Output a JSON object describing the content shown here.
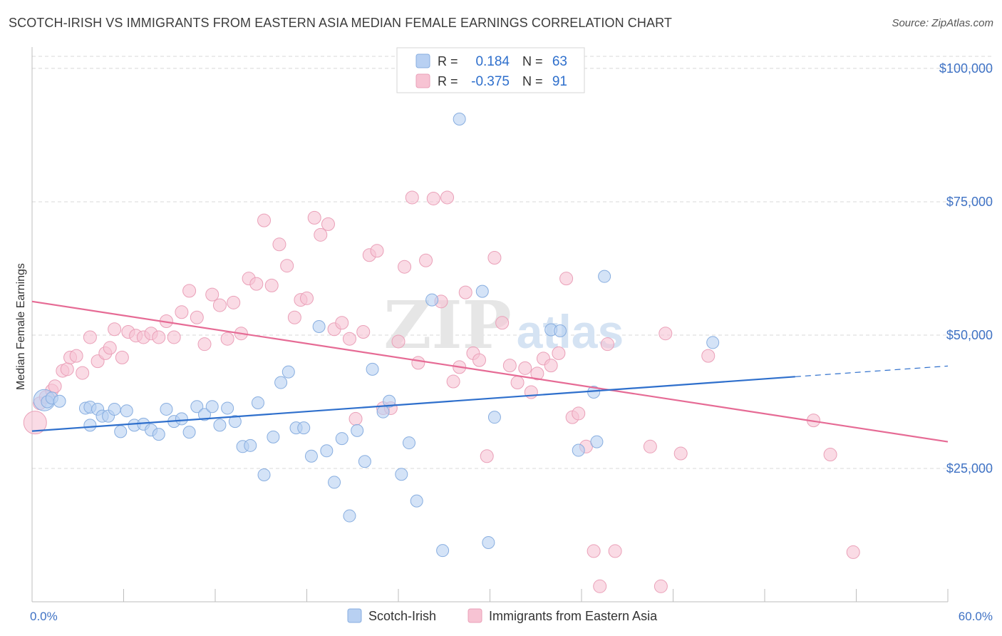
{
  "header": {
    "title": "SCOTCH-IRISH VS IMMIGRANTS FROM EASTERN ASIA MEDIAN FEMALE EARNINGS CORRELATION CHART",
    "source": "Source: ZipAtlas.com"
  },
  "watermark": {
    "zip": "ZIP",
    "atlas": "atlas"
  },
  "colors": {
    "blue_fill": "#b8d0f2",
    "blue_stroke": "#88aee0",
    "blue_line": "#2e6fcc",
    "pink_fill": "#f7c3d3",
    "pink_stroke": "#eaa0b8",
    "pink_line": "#e66b95",
    "tick_label": "#3f72c4",
    "grid": "#d8d8d8"
  },
  "legend_top": {
    "rows": [
      {
        "r_label": "R =",
        "r_value": "0.184",
        "n_label": "N =",
        "n_value": "63"
      },
      {
        "r_label": "R =",
        "r_value": "-0.375",
        "n_label": "N =",
        "n_value": "91"
      }
    ]
  },
  "legend_bottom": {
    "items": [
      "Scotch-Irish",
      "Immigrants from Eastern Asia"
    ]
  },
  "chart_data": {
    "type": "scatter",
    "title": "SCOTCH-IRISH VS IMMIGRANTS FROM EASTERN ASIA MEDIAN FEMALE EARNINGS CORRELATION CHART",
    "xlabel": "",
    "ylabel": "Median Female Earnings",
    "xlim": [
      0,
      60
    ],
    "ylim": [
      0,
      104000
    ],
    "x_tick_labels": [
      "0.0%",
      "60.0%"
    ],
    "y_ticks": [
      25000,
      50000,
      75000,
      100000
    ],
    "y_tick_labels": [
      "$25,000",
      "$50,000",
      "$75,000",
      "$100,000"
    ],
    "grid": true,
    "legend_position": "bottom",
    "series": [
      {
        "name": "Scotch-Irish",
        "r": 0.184,
        "n": 63,
        "trend": {
          "x": [
            0,
            50
          ],
          "y": [
            32000,
            42200
          ],
          "dashed_to": [
            60,
            44200
          ]
        },
        "points": [
          [
            0.8,
            37800
          ],
          [
            1.0,
            37500
          ],
          [
            1.3,
            38200
          ],
          [
            1.8,
            37600
          ],
          [
            3.5,
            36300
          ],
          [
            3.8,
            36500
          ],
          [
            4.3,
            36100
          ],
          [
            3.8,
            33100
          ],
          [
            4.6,
            34800
          ],
          [
            5.0,
            34800
          ],
          [
            5.4,
            36100
          ],
          [
            5.8,
            31900
          ],
          [
            6.2,
            35800
          ],
          [
            6.7,
            33100
          ],
          [
            7.3,
            33300
          ],
          [
            7.8,
            32200
          ],
          [
            8.3,
            31400
          ],
          [
            8.8,
            36100
          ],
          [
            9.3,
            33800
          ],
          [
            9.8,
            34300
          ],
          [
            10.3,
            31800
          ],
          [
            10.8,
            36600
          ],
          [
            11.3,
            35100
          ],
          [
            11.8,
            36600
          ],
          [
            12.3,
            33100
          ],
          [
            12.8,
            36300
          ],
          [
            13.3,
            33800
          ],
          [
            13.8,
            29100
          ],
          [
            14.3,
            29300
          ],
          [
            14.8,
            37300
          ],
          [
            15.2,
            23800
          ],
          [
            15.8,
            30900
          ],
          [
            16.3,
            41100
          ],
          [
            16.8,
            43100
          ],
          [
            17.3,
            32600
          ],
          [
            17.8,
            32600
          ],
          [
            18.3,
            27300
          ],
          [
            18.8,
            51600
          ],
          [
            19.3,
            28300
          ],
          [
            19.8,
            22400
          ],
          [
            20.3,
            30600
          ],
          [
            20.8,
            16100
          ],
          [
            21.3,
            32100
          ],
          [
            21.8,
            26300
          ],
          [
            22.3,
            43600
          ],
          [
            23.0,
            35600
          ],
          [
            23.4,
            37600
          ],
          [
            24.2,
            23900
          ],
          [
            24.7,
            29800
          ],
          [
            25.2,
            18900
          ],
          [
            26.2,
            56600
          ],
          [
            26.9,
            9600
          ],
          [
            28.0,
            90500
          ],
          [
            29.5,
            58200
          ],
          [
            29.9,
            11100
          ],
          [
            30.3,
            34600
          ],
          [
            34.0,
            51000
          ],
          [
            34.6,
            50800
          ],
          [
            35.8,
            28400
          ],
          [
            36.8,
            39300
          ],
          [
            37.0,
            30000
          ],
          [
            37.5,
            61000
          ],
          [
            44.6,
            48600
          ]
        ]
      },
      {
        "name": "Immigrants from Eastern Asia",
        "r": -0.375,
        "n": 91,
        "trend": {
          "x": [
            0,
            60
          ],
          "y": [
            56300,
            30000
          ]
        },
        "points": [
          [
            0.2,
            33600
          ],
          [
            0.5,
            37200
          ],
          [
            0.9,
            38400
          ],
          [
            1.3,
            39600
          ],
          [
            1.5,
            40400
          ],
          [
            2.0,
            43300
          ],
          [
            2.3,
            43600
          ],
          [
            2.5,
            45800
          ],
          [
            2.9,
            46100
          ],
          [
            3.3,
            42900
          ],
          [
            3.8,
            49600
          ],
          [
            4.3,
            45100
          ],
          [
            4.8,
            46600
          ],
          [
            5.1,
            47600
          ],
          [
            5.4,
            51100
          ],
          [
            5.9,
            45800
          ],
          [
            6.3,
            50600
          ],
          [
            6.8,
            49900
          ],
          [
            7.3,
            49600
          ],
          [
            7.8,
            50300
          ],
          [
            8.3,
            49600
          ],
          [
            8.8,
            52600
          ],
          [
            9.3,
            49600
          ],
          [
            9.8,
            54300
          ],
          [
            10.3,
            58300
          ],
          [
            10.8,
            53300
          ],
          [
            11.3,
            48300
          ],
          [
            11.8,
            57600
          ],
          [
            12.3,
            55600
          ],
          [
            12.8,
            49300
          ],
          [
            13.2,
            56100
          ],
          [
            13.7,
            50300
          ],
          [
            14.2,
            60600
          ],
          [
            14.7,
            59600
          ],
          [
            15.2,
            71500
          ],
          [
            15.7,
            59300
          ],
          [
            16.2,
            67000
          ],
          [
            16.7,
            63000
          ],
          [
            17.2,
            53300
          ],
          [
            17.6,
            56600
          ],
          [
            18.0,
            56900
          ],
          [
            18.5,
            72000
          ],
          [
            18.9,
            68800
          ],
          [
            19.4,
            70800
          ],
          [
            19.8,
            51100
          ],
          [
            20.3,
            52300
          ],
          [
            20.8,
            49300
          ],
          [
            21.2,
            34300
          ],
          [
            21.7,
            50600
          ],
          [
            22.1,
            65000
          ],
          [
            22.6,
            65800
          ],
          [
            23.0,
            36300
          ],
          [
            23.5,
            36300
          ],
          [
            24.0,
            48800
          ],
          [
            24.4,
            62800
          ],
          [
            24.9,
            75800
          ],
          [
            25.3,
            44800
          ],
          [
            25.8,
            64000
          ],
          [
            26.3,
            75600
          ],
          [
            26.8,
            56300
          ],
          [
            27.2,
            75800
          ],
          [
            27.6,
            41300
          ],
          [
            28.0,
            44000
          ],
          [
            28.4,
            58000
          ],
          [
            28.9,
            46600
          ],
          [
            29.3,
            45300
          ],
          [
            29.8,
            27300
          ],
          [
            30.3,
            64500
          ],
          [
            30.8,
            52300
          ],
          [
            31.3,
            44300
          ],
          [
            31.8,
            41100
          ],
          [
            32.3,
            43800
          ],
          [
            32.7,
            39300
          ],
          [
            33.1,
            42800
          ],
          [
            33.5,
            45600
          ],
          [
            34.0,
            44300
          ],
          [
            34.5,
            46600
          ],
          [
            35.0,
            60600
          ],
          [
            35.4,
            34600
          ],
          [
            35.8,
            35300
          ],
          [
            36.3,
            29100
          ],
          [
            36.8,
            9500
          ],
          [
            37.2,
            2900
          ],
          [
            37.7,
            48300
          ],
          [
            38.2,
            9500
          ],
          [
            40.5,
            29100
          ],
          [
            41.2,
            2900
          ],
          [
            41.5,
            50300
          ],
          [
            42.5,
            27800
          ],
          [
            44.3,
            46100
          ],
          [
            51.2,
            34000
          ],
          [
            52.3,
            27600
          ],
          [
            53.8,
            9300
          ]
        ]
      }
    ]
  }
}
